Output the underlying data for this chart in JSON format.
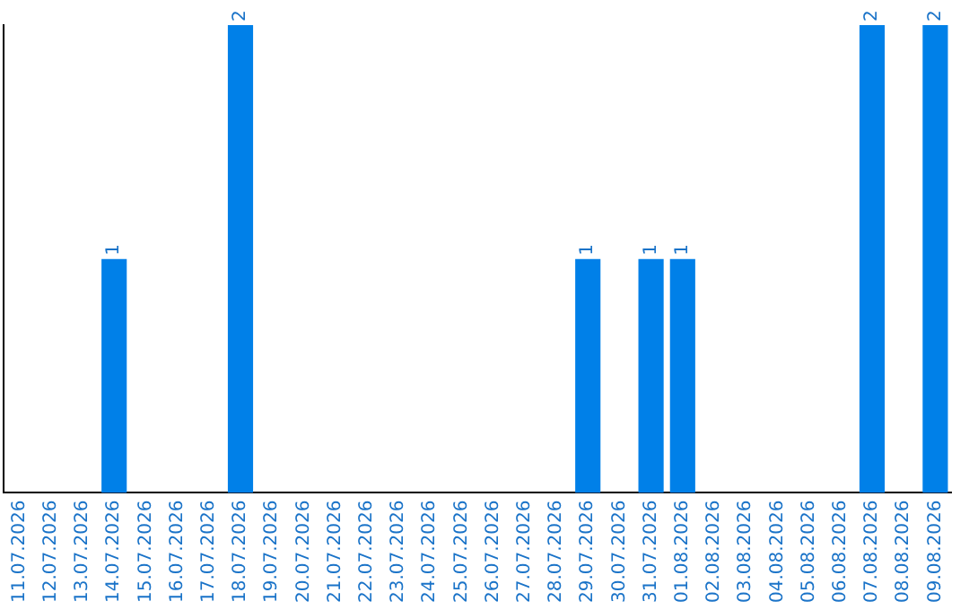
{
  "chart_data": {
    "type": "bar",
    "categories": [
      "11.07.2026",
      "12.07.2026",
      "13.07.2026",
      "14.07.2026",
      "15.07.2026",
      "16.07.2026",
      "17.07.2026",
      "18.07.2026",
      "19.07.2026",
      "20.07.2026",
      "21.07.2026",
      "22.07.2026",
      "23.07.2026",
      "24.07.2026",
      "25.07.2026",
      "26.07.2026",
      "27.07.2026",
      "28.07.2026",
      "29.07.2026",
      "30.07.2026",
      "31.07.2026",
      "01.08.2026",
      "02.08.2026",
      "03.08.2026",
      "04.08.2026",
      "05.08.2026",
      "06.08.2026",
      "07.08.2026",
      "08.08.2026",
      "09.08.2026"
    ],
    "values": [
      0,
      0,
      0,
      1,
      0,
      0,
      0,
      2,
      0,
      0,
      0,
      0,
      0,
      0,
      0,
      0,
      0,
      0,
      1,
      0,
      1,
      1,
      0,
      0,
      0,
      0,
      0,
      2,
      0,
      2
    ],
    "value_labels": [
      null,
      null,
      null,
      "1",
      null,
      null,
      null,
      "2",
      null,
      null,
      null,
      null,
      null,
      null,
      null,
      null,
      null,
      null,
      "1",
      null,
      "1",
      "1",
      null,
      null,
      null,
      null,
      null,
      "2",
      null,
      "2"
    ],
    "color": "#0080e8",
    "grid": false,
    "legend": false
  }
}
